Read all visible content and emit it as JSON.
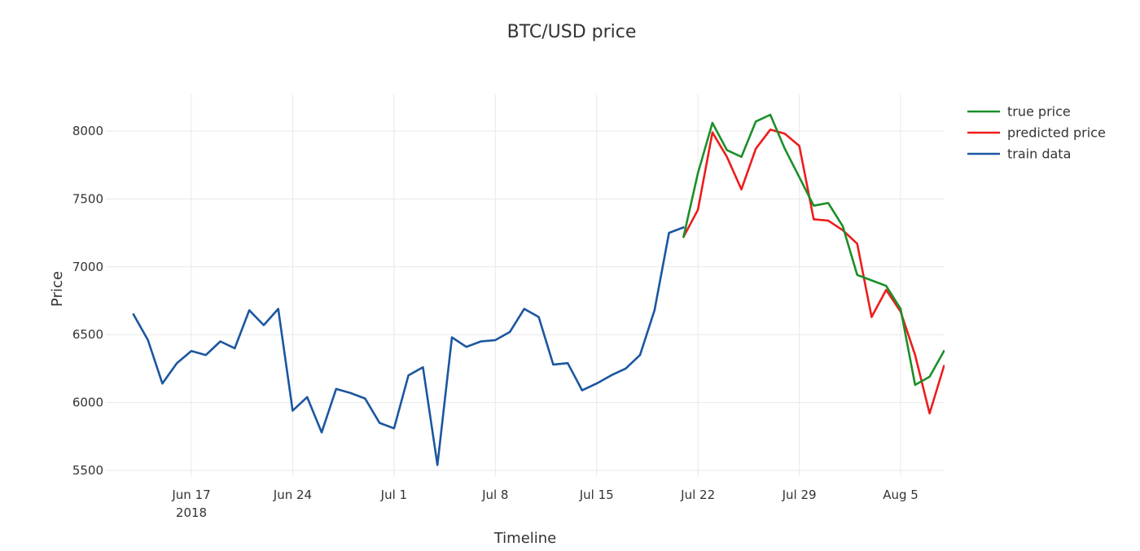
{
  "chart_data": {
    "type": "line",
    "title": "BTC/USD price",
    "xlabel": "Timeline",
    "ylabel": "Price",
    "x_range": [
      "2018-06-13",
      "2018-08-07"
    ],
    "ylim": [
      5450,
      8280
    ],
    "y_ticks": [
      5500,
      6000,
      6500,
      7000,
      7500,
      8000
    ],
    "x_ticks": [
      {
        "date": "2018-06-17",
        "label": "Jun 17",
        "sublabel": "2018"
      },
      {
        "date": "2018-06-24",
        "label": "Jun 24",
        "sublabel": ""
      },
      {
        "date": "2018-07-01",
        "label": "Jul 1",
        "sublabel": ""
      },
      {
        "date": "2018-07-08",
        "label": "Jul 8",
        "sublabel": ""
      },
      {
        "date": "2018-07-15",
        "label": "Jul 15",
        "sublabel": ""
      },
      {
        "date": "2018-07-22",
        "label": "Jul 22",
        "sublabel": ""
      },
      {
        "date": "2018-07-29",
        "label": "Jul 29",
        "sublabel": ""
      },
      {
        "date": "2018-08-05",
        "label": "Aug 5",
        "sublabel": ""
      }
    ],
    "grid": true,
    "legend_position": "top-right",
    "series": [
      {
        "name": "true price",
        "color": "#1a8f28",
        "x": [
          "2018-07-21",
          "2018-07-22",
          "2018-07-23",
          "2018-07-24",
          "2018-07-25",
          "2018-07-26",
          "2018-07-27",
          "2018-07-28",
          "2018-07-29",
          "2018-07-30",
          "2018-07-31",
          "2018-08-01",
          "2018-08-02",
          "2018-08-03",
          "2018-08-04",
          "2018-08-05",
          "2018-08-06",
          "2018-08-07",
          "2018-08-08"
        ],
        "y": [
          7220,
          7690,
          8060,
          7860,
          7810,
          8070,
          8120,
          7870,
          7660,
          7450,
          7470,
          7300,
          6940,
          6900,
          6860,
          6690,
          6130,
          6190,
          6380
        ]
      },
      {
        "name": "predicted price",
        "color": "#ee1c1c",
        "x": [
          "2018-07-21",
          "2018-07-22",
          "2018-07-23",
          "2018-07-24",
          "2018-07-25",
          "2018-07-26",
          "2018-07-27",
          "2018-07-28",
          "2018-07-29",
          "2018-07-30",
          "2018-07-31",
          "2018-08-01",
          "2018-08-02",
          "2018-08-03",
          "2018-08-04",
          "2018-08-05",
          "2018-08-06",
          "2018-08-07",
          "2018-08-08"
        ],
        "y": [
          7220,
          7420,
          7990,
          7810,
          7570,
          7870,
          8010,
          7980,
          7890,
          7350,
          7340,
          7270,
          7170,
          6630,
          6830,
          6670,
          6350,
          5920,
          6270
        ]
      },
      {
        "name": "train data",
        "color": "#1b56a0",
        "x": [
          "2018-06-13",
          "2018-06-14",
          "2018-06-15",
          "2018-06-16",
          "2018-06-17",
          "2018-06-18",
          "2018-06-19",
          "2018-06-20",
          "2018-06-21",
          "2018-06-22",
          "2018-06-23",
          "2018-06-24",
          "2018-06-25",
          "2018-06-26",
          "2018-06-27",
          "2018-06-28",
          "2018-06-29",
          "2018-06-30",
          "2018-07-01",
          "2018-07-02",
          "2018-07-03",
          "2018-07-04",
          "2018-07-05",
          "2018-07-06",
          "2018-07-07",
          "2018-07-08",
          "2018-07-09",
          "2018-07-10",
          "2018-07-11",
          "2018-07-12",
          "2018-07-13",
          "2018-07-14",
          "2018-07-15",
          "2018-07-16",
          "2018-07-17",
          "2018-07-18",
          "2018-07-19",
          "2018-07-20",
          "2018-07-21"
        ],
        "y": [
          6650,
          6460,
          6140,
          6290,
          6380,
          6350,
          6450,
          6400,
          6680,
          6570,
          6690,
          5940,
          6040,
          5780,
          6100,
          6070,
          6030,
          5850,
          5810,
          6200,
          6260,
          5540,
          6480,
          6410,
          6450,
          6460,
          6520,
          6690,
          6630,
          6280,
          6290,
          6090,
          6140,
          6200,
          6250,
          6350,
          6680,
          7250,
          7290
        ]
      }
    ]
  }
}
